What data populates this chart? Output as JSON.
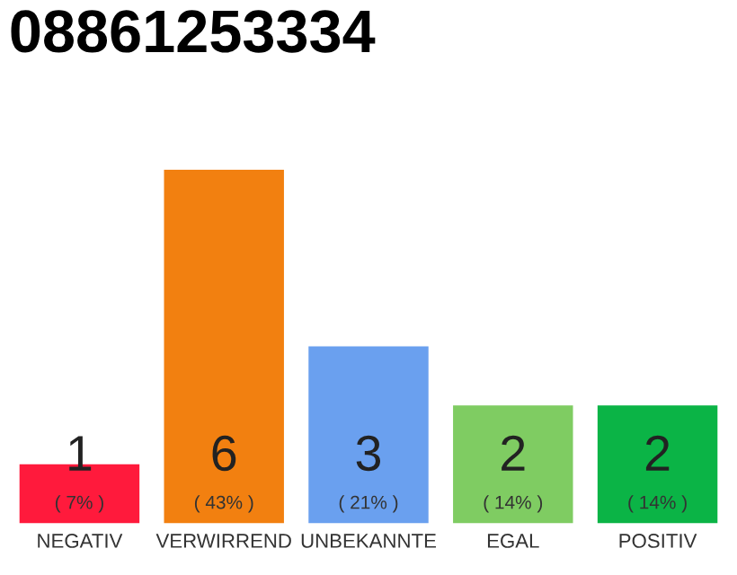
{
  "chart_data": {
    "type": "bar",
    "title": "08861253334",
    "categories": [
      "NEGATIV",
      "VERWIRREND",
      "UNBEKANNTE",
      "EGAL",
      "POSITIV"
    ],
    "values": [
      1,
      6,
      3,
      2,
      2
    ],
    "colors": [
      "#ff1a3c",
      "#f28010",
      "#6aa0ef",
      "#7fcc62",
      "#0bb446"
    ],
    "value_labels": [
      "1\n( 7% )",
      "6\n( 43% )",
      "3\n( 21% )",
      "2\n( 14% )",
      "2\n( 14% )"
    ],
    "grid": false,
    "legend": false
  }
}
